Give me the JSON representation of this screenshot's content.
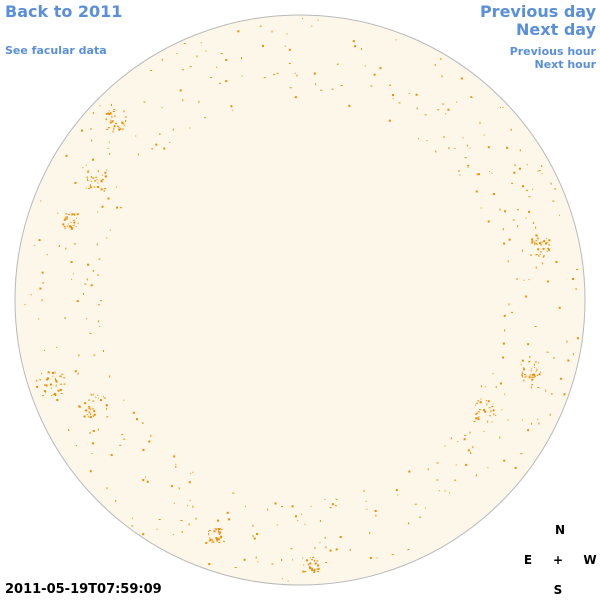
{
  "nav": {
    "back_year": "Back to 2011",
    "see_facular": "See facular data",
    "previous_day": "Previous day",
    "next_day": "Next day",
    "previous_hour": "Previous hour",
    "next_hour": "Next hour"
  },
  "compass": {
    "north": "N",
    "east": "E",
    "center": "+",
    "west": "W",
    "south": "S"
  },
  "timestamp": "2011-05-19T07:59:09"
}
